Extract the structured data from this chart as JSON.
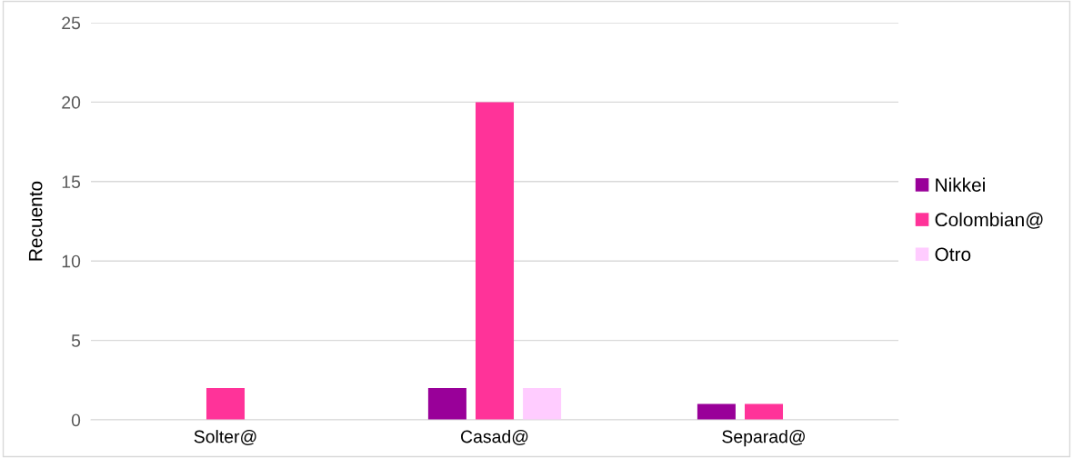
{
  "chart_data": {
    "type": "bar",
    "ylabel": "Recuento",
    "categories": [
      "Solter@",
      "Casad@",
      "Separad@"
    ],
    "series": [
      {
        "name": "Nikkei",
        "color": "#990099",
        "values": [
          0,
          2,
          1
        ]
      },
      {
        "name": "Colombian@",
        "color": "#ff3399",
        "values": [
          2,
          20,
          1
        ]
      },
      {
        "name": "Otro",
        "color": "#ffccff",
        "values": [
          0,
          2,
          0
        ]
      }
    ],
    "ylim": [
      0,
      25
    ],
    "yticks": [
      0,
      5,
      10,
      15,
      20,
      25
    ],
    "grid": "y",
    "legend": "right"
  }
}
